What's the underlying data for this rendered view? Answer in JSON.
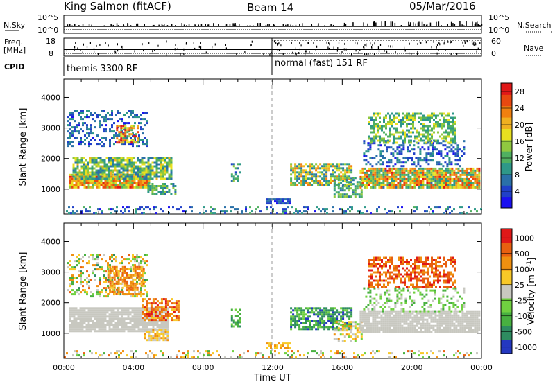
{
  "header": {
    "station": "King Salmon (fitACF)",
    "beam": "Beam 14",
    "date": "05/Mar/2016"
  },
  "status_panel": {
    "nsky_label": "N.Sky",
    "nsky_ticks": [
      "10^5",
      "10^0"
    ],
    "nsearch_label": "N.Search",
    "nsearch_ticks": [
      "10^5",
      "10^0"
    ],
    "freq_label": "Freq.",
    "freq_unit": "[MHz]",
    "freq_ticks": [
      "18",
      "8"
    ],
    "nave_label": "Nave",
    "nave_ticks": [
      "60",
      "0"
    ],
    "cpid_label": "CPID",
    "cpid_modes": [
      {
        "name": "themis 3300 RF",
        "start_hour": 0,
        "end_hour": 12
      },
      {
        "name": "normal (fast) 151 RF",
        "start_hour": 12,
        "end_hour": 24
      }
    ]
  },
  "chart_data": [
    {
      "type": "heatmap",
      "parameter": "Power",
      "ylabel": "Slant Range [km]",
      "ylim": [
        180,
        4600
      ],
      "y_ticks": [
        "1000",
        "2000",
        "3000",
        "4000"
      ],
      "xlim": [
        0,
        24
      ],
      "colorbar": {
        "label": "Power [dB]",
        "ticks": [
          "4",
          "8",
          "12",
          "16",
          "20",
          "24",
          "28"
        ],
        "range": [
          0,
          30
        ],
        "colors": [
          "#1a10f0",
          "#2040c8",
          "#2a70a8",
          "#2e9888",
          "#50b060",
          "#90c840",
          "#e8e020",
          "#f0b020",
          "#f08010",
          "#e84810",
          "#e01818"
        ]
      },
      "echo_regions": [
        {
          "t0": 0.3,
          "t1": 4.9,
          "r0": 1050,
          "r1": 1500,
          "v0": 12,
          "v1": 28,
          "density": 0.95
        },
        {
          "t0": 0.5,
          "t1": 6.2,
          "r0": 1350,
          "r1": 2050,
          "v0": 6,
          "v1": 20,
          "density": 0.8
        },
        {
          "t0": 0.2,
          "t1": 4.8,
          "r0": 2400,
          "r1": 3600,
          "v0": 2,
          "v1": 10,
          "density": 0.35
        },
        {
          "t0": 3.0,
          "t1": 4.2,
          "r0": 2500,
          "r1": 3100,
          "v0": 10,
          "v1": 30,
          "density": 0.75
        },
        {
          "t0": 4.8,
          "t1": 6.4,
          "r0": 800,
          "r1": 1200,
          "v0": 6,
          "v1": 16,
          "density": 0.7
        },
        {
          "t0": 9.6,
          "t1": 10.1,
          "r0": 1250,
          "r1": 1850,
          "v0": 4,
          "v1": 14,
          "density": 0.55
        },
        {
          "t0": 11.6,
          "t1": 13.0,
          "r0": 550,
          "r1": 700,
          "v0": 2,
          "v1": 8,
          "density": 0.7
        },
        {
          "t0": 13.0,
          "t1": 16.5,
          "r0": 1150,
          "r1": 1850,
          "v0": 6,
          "v1": 24,
          "density": 0.7
        },
        {
          "t0": 15.5,
          "t1": 17.1,
          "r0": 750,
          "r1": 1400,
          "v0": 6,
          "v1": 16,
          "density": 0.55
        },
        {
          "t0": 17.0,
          "t1": 23.9,
          "r0": 1050,
          "r1": 1700,
          "v0": 8,
          "v1": 28,
          "density": 0.9
        },
        {
          "t0": 17.2,
          "t1": 23.0,
          "r0": 1750,
          "r1": 2600,
          "v0": 2,
          "v1": 10,
          "density": 0.35
        },
        {
          "t0": 17.5,
          "t1": 22.5,
          "r0": 2500,
          "r1": 3500,
          "v0": 8,
          "v1": 18,
          "density": 0.55
        },
        {
          "t0": 0.0,
          "t1": 24.0,
          "r0": 200,
          "r1": 450,
          "v0": 2,
          "v1": 12,
          "density": 0.25
        }
      ]
    },
    {
      "type": "heatmap",
      "parameter": "Velocity",
      "ylabel": "Slant Range [km]",
      "ylim": [
        180,
        4600
      ],
      "y_ticks": [
        "1000",
        "2000",
        "3000",
        "4000"
      ],
      "xlim": [
        0,
        24
      ],
      "xlabel": "Time UT",
      "x_ticks": [
        "00:00",
        "04:00",
        "08:00",
        "12:00",
        "16:00",
        "20:00",
        "00:00"
      ],
      "colorbar": {
        "label": "Velocity [m s",
        "label_sup": "-1",
        "label_end": "]",
        "ticks": [
          "1000",
          "500",
          "100",
          "25",
          "-25",
          "-100",
          "-500",
          "-1000"
        ],
        "colors": [
          "#2438c0",
          "#2e8c60",
          "#48b040",
          "#70d040",
          "#c8c8c0",
          "#f8c828",
          "#f09010",
          "#e86010",
          "#e01818"
        ]
      },
      "echo_regions": [
        {
          "t0": 0.3,
          "t1": 6.0,
          "r0": 1050,
          "r1": 1850,
          "v0": 4,
          "v1": 4,
          "density": 0.9
        },
        {
          "t0": 4.5,
          "t1": 6.6,
          "r0": 1450,
          "r1": 2150,
          "v0": 5,
          "v1": 8,
          "density": 0.65
        },
        {
          "t0": 0.2,
          "t1": 4.8,
          "r0": 2200,
          "r1": 3600,
          "v0": 1,
          "v1": 7,
          "density": 0.35
        },
        {
          "t0": 2.5,
          "t1": 4.6,
          "r0": 2300,
          "r1": 3200,
          "v0": 5,
          "v1": 7,
          "density": 0.6
        },
        {
          "t0": 4.6,
          "t1": 6.0,
          "r0": 750,
          "r1": 1150,
          "v0": 4,
          "v1": 6,
          "density": 0.7
        },
        {
          "t0": 9.6,
          "t1": 10.1,
          "r0": 1250,
          "r1": 1800,
          "v0": 1,
          "v1": 3,
          "density": 0.55
        },
        {
          "t0": 11.6,
          "t1": 13.0,
          "r0": 550,
          "r1": 700,
          "v0": 5,
          "v1": 6,
          "density": 0.7
        },
        {
          "t0": 13.0,
          "t1": 16.5,
          "r0": 1150,
          "r1": 1850,
          "v0": 0,
          "v1": 3,
          "density": 0.7
        },
        {
          "t0": 15.5,
          "t1": 17.1,
          "r0": 750,
          "r1": 1400,
          "v0": 3,
          "v1": 6,
          "density": 0.5
        },
        {
          "t0": 17.0,
          "t1": 23.9,
          "r0": 1050,
          "r1": 1750,
          "v0": 4,
          "v1": 4,
          "density": 0.9
        },
        {
          "t0": 17.2,
          "t1": 23.0,
          "r0": 1750,
          "r1": 2500,
          "v0": 2,
          "v1": 4,
          "density": 0.3
        },
        {
          "t0": 17.5,
          "t1": 22.5,
          "r0": 2500,
          "r1": 3500,
          "v0": 6,
          "v1": 8,
          "density": 0.55
        },
        {
          "t0": 0.0,
          "t1": 24.0,
          "r0": 200,
          "r1": 450,
          "v0": 2,
          "v1": 7,
          "density": 0.22
        }
      ]
    }
  ]
}
